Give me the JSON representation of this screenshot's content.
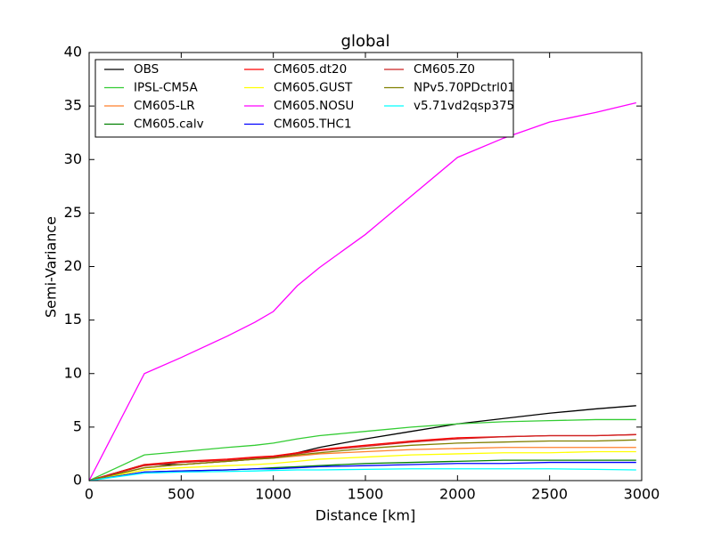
{
  "chart_data": {
    "type": "line",
    "title": "global",
    "xlabel": "Distance [km]",
    "ylabel": "Semi-Variance",
    "x": [
      0,
      300,
      500,
      750,
      900,
      1000,
      1130,
      1250,
      1500,
      1750,
      2000,
      2250,
      2500,
      2750,
      2970
    ],
    "xlim": [
      0,
      3000
    ],
    "xticks": [
      0,
      500,
      1000,
      1500,
      2000,
      2500,
      3000
    ],
    "ylim": [
      0,
      40
    ],
    "yticks": [
      0,
      5,
      10,
      15,
      20,
      25,
      30,
      35,
      40
    ],
    "legend": "upper left",
    "legend_columns": 3,
    "series": [
      {
        "name": "OBS",
        "color": "#000000",
        "values": [
          0,
          1.5,
          1.5,
          1.8,
          2.0,
          2.2,
          2.6,
          3.1,
          3.9,
          4.6,
          5.3,
          5.8,
          6.3,
          6.7,
          7.0
        ]
      },
      {
        "name": "IPSL-CM5A",
        "color": "#33cc33",
        "values": [
          0,
          2.4,
          2.7,
          3.1,
          3.3,
          3.5,
          3.9,
          4.2,
          4.6,
          5.0,
          5.3,
          5.5,
          5.6,
          5.7,
          5.7
        ]
      },
      {
        "name": "CM605-LR",
        "color": "#ff7f2a",
        "values": [
          0,
          1.2,
          1.5,
          1.8,
          2.0,
          2.1,
          2.3,
          2.5,
          2.7,
          2.9,
          3.0,
          3.1,
          3.1,
          3.1,
          3.1
        ]
      },
      {
        "name": "CM605.calv",
        "color": "#008000",
        "values": [
          0,
          0.8,
          0.9,
          1.0,
          1.1,
          1.2,
          1.3,
          1.4,
          1.6,
          1.7,
          1.8,
          1.9,
          1.9,
          1.9,
          1.9
        ]
      },
      {
        "name": "CM605.dt20",
        "color": "#ff0000",
        "values": [
          0,
          1.5,
          1.8,
          2.0,
          2.2,
          2.3,
          2.6,
          2.9,
          3.3,
          3.7,
          4.0,
          4.1,
          4.2,
          4.2,
          4.3
        ]
      },
      {
        "name": "CM605.GUST",
        "color": "#ffff00",
        "values": [
          0,
          1.0,
          1.2,
          1.4,
          1.5,
          1.6,
          1.8,
          2.0,
          2.2,
          2.4,
          2.5,
          2.6,
          2.6,
          2.7,
          2.7
        ]
      },
      {
        "name": "CM605.NOSU",
        "color": "#ff00ff",
        "values": [
          0,
          10.0,
          11.5,
          13.5,
          14.8,
          15.8,
          18.2,
          19.9,
          23.0,
          26.6,
          30.2,
          32.0,
          33.5,
          34.4,
          35.3
        ]
      },
      {
        "name": "CM605.THC1",
        "color": "#0000ff",
        "values": [
          0,
          0.8,
          0.9,
          1.0,
          1.1,
          1.1,
          1.2,
          1.3,
          1.4,
          1.5,
          1.6,
          1.6,
          1.7,
          1.7,
          1.7
        ]
      },
      {
        "name": "CM605.Z0",
        "color": "#cc2222",
        "values": [
          0,
          1.4,
          1.7,
          1.9,
          2.1,
          2.2,
          2.5,
          2.8,
          3.2,
          3.6,
          3.9,
          4.1,
          4.2,
          4.2,
          4.3
        ]
      },
      {
        "name": "NPv5.70PDctrl01",
        "color": "#808000",
        "values": [
          0,
          1.2,
          1.5,
          1.8,
          2.0,
          2.1,
          2.4,
          2.6,
          3.0,
          3.3,
          3.5,
          3.6,
          3.7,
          3.7,
          3.8
        ]
      },
      {
        "name": "v5.71vd2qsp375",
        "color": "#00ffff",
        "values": [
          0,
          0.7,
          0.8,
          0.85,
          0.9,
          0.95,
          1.0,
          1.0,
          1.05,
          1.1,
          1.1,
          1.1,
          1.1,
          1.05,
          1.0
        ]
      }
    ]
  }
}
